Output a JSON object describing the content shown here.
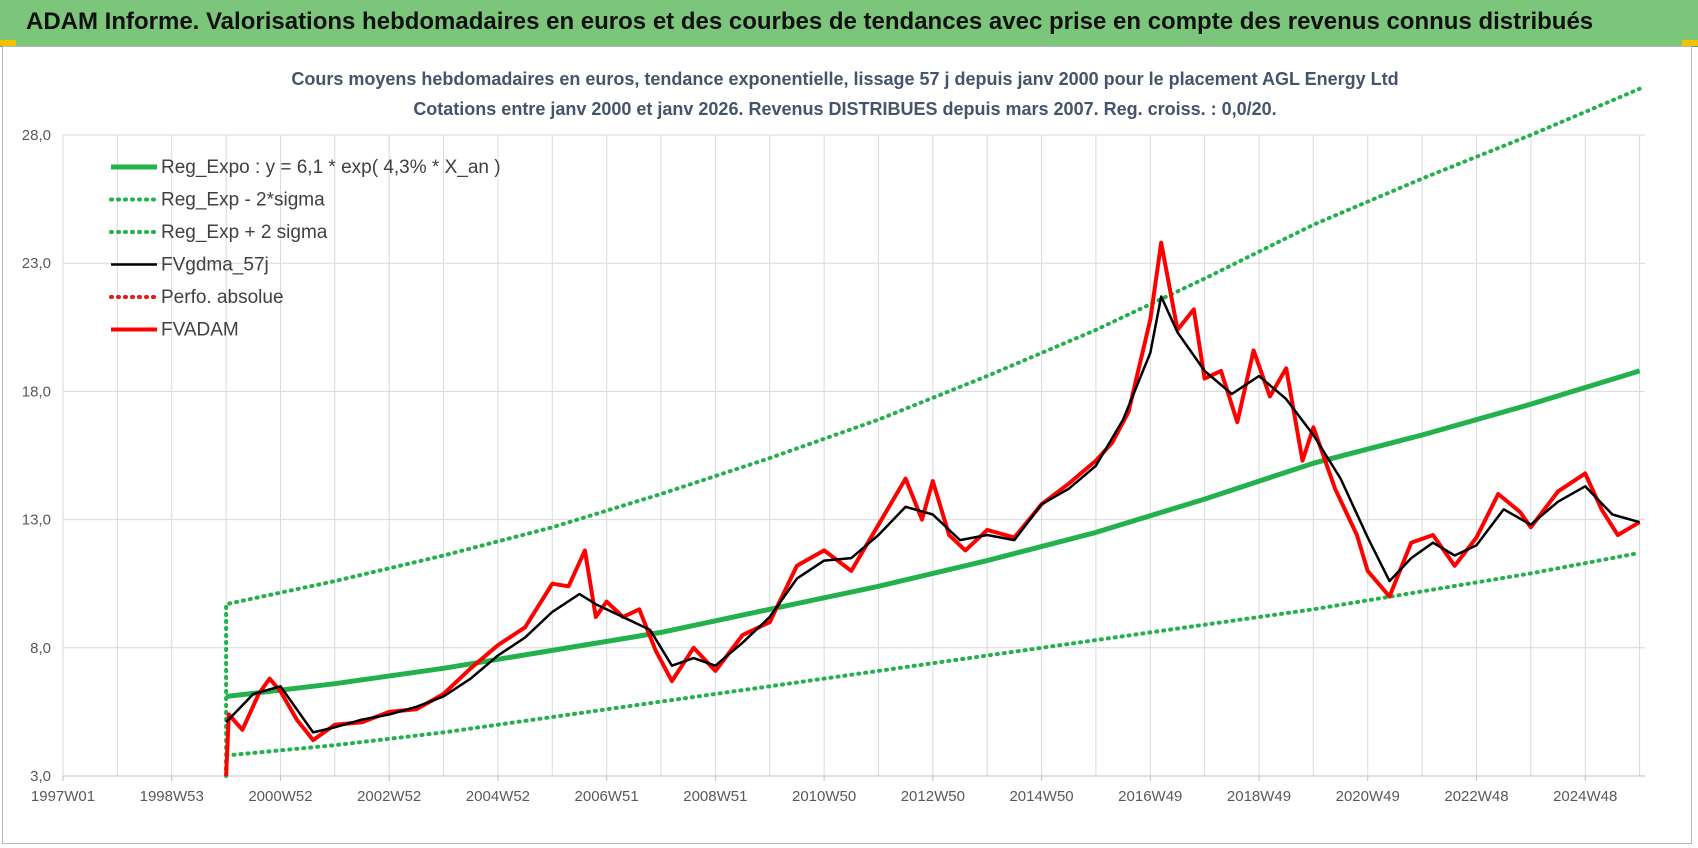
{
  "header": {
    "title": "ADAM Informe. Valorisations hebdomadaires en euros et des courbes de tendances avec prise en compte des revenus connus distribués"
  },
  "colors": {
    "banner": "#7cc67c",
    "trend": "#22b14c",
    "band": "#22b14c",
    "smooth": "#000000",
    "perfo": "#e41a1c",
    "fvadam": "#ff0000",
    "grid": "#d9d9d9"
  },
  "chart_data": {
    "type": "line",
    "title": "Cours moyens hebdomadaires en euros, tendance exponentielle, lissage 57 j depuis janv 2000  pour le placement AGL Energy Ltd",
    "subtitle": "Cotations entre janv 2000 et janv 2026. Revenus DISTRIBUES depuis mars 2007. Reg. croiss. : 0,0/20.",
    "xlabel": "",
    "ylabel": "",
    "xlim": [
      1997.0,
      2026.1
    ],
    "ylim": [
      3.0,
      28.0
    ],
    "yticks": [
      3.0,
      8.0,
      13.0,
      18.0,
      23.0,
      28.0
    ],
    "ytick_labels": [
      "3,0",
      "8,0",
      "13,0",
      "18,0",
      "23,0",
      "28,0"
    ],
    "xticks": [
      {
        "x": 1997.0,
        "label": "1997W01"
      },
      {
        "x": 1999.0,
        "label": "1998W53"
      },
      {
        "x": 2001.0,
        "label": "2000W52"
      },
      {
        "x": 2003.0,
        "label": "2002W52"
      },
      {
        "x": 2005.0,
        "label": "2004W52"
      },
      {
        "x": 2007.0,
        "label": "2006W51"
      },
      {
        "x": 2009.0,
        "label": "2008W51"
      },
      {
        "x": 2011.0,
        "label": "2010W50"
      },
      {
        "x": 2013.0,
        "label": "2012W50"
      },
      {
        "x": 2015.0,
        "label": "2014W50"
      },
      {
        "x": 2017.0,
        "label": "2016W49"
      },
      {
        "x": 2019.0,
        "label": "2018W49"
      },
      {
        "x": 2021.0,
        "label": "2020W49"
      },
      {
        "x": 2023.0,
        "label": "2022W48"
      },
      {
        "x": 2025.0,
        "label": "2024W48"
      }
    ],
    "grid": true,
    "legend_position": "top-left",
    "series": [
      {
        "name": "Reg_Expo : y = 6,1 * exp( 4,3% *  X_an )",
        "style": "solid-thick",
        "color": "#22b14c",
        "x": [
          2000.0,
          2002.0,
          2004.0,
          2006.0,
          2008.0,
          2010.0,
          2012.0,
          2014.0,
          2016.0,
          2018.0,
          2020.0,
          2022.0,
          2024.0,
          2026.0
        ],
        "y": [
          6.1,
          6.6,
          7.2,
          7.9,
          8.6,
          9.5,
          10.4,
          11.4,
          12.5,
          13.8,
          15.2,
          16.3,
          17.5,
          18.8
        ]
      },
      {
        "name": "Reg_Exp - 2*sigma",
        "style": "dotted",
        "color": "#22b14c",
        "x": [
          2000.0,
          2000.0,
          2002.0,
          2004.0,
          2006.0,
          2008.0,
          2010.0,
          2012.0,
          2014.0,
          2016.0,
          2018.0,
          2020.0,
          2022.0,
          2024.0,
          2026.0
        ],
        "y": [
          3.0,
          3.8,
          4.2,
          4.7,
          5.3,
          5.9,
          6.5,
          7.1,
          7.7,
          8.3,
          8.9,
          9.5,
          10.2,
          10.9,
          11.7
        ]
      },
      {
        "name": "Reg_Exp + 2 sigma",
        "style": "dotted",
        "color": "#22b14c",
        "x": [
          2000.0,
          2000.0,
          2002.0,
          2004.0,
          2006.0,
          2008.0,
          2010.0,
          2012.0,
          2014.0,
          2016.0,
          2018.0,
          2020.0,
          2022.0,
          2024.0,
          2026.0
        ],
        "y": [
          3.0,
          9.7,
          10.6,
          11.6,
          12.7,
          14.0,
          15.4,
          16.9,
          18.6,
          20.4,
          22.4,
          24.5,
          26.3,
          28.0,
          29.8
        ]
      },
      {
        "name": "FVgdma_57j",
        "style": "solid",
        "color": "#000000",
        "x": [
          2000.0,
          2000.5,
          2001.0,
          2001.3,
          2001.6,
          2002.0,
          2002.5,
          2003.0,
          2003.5,
          2004.0,
          2004.5,
          2005.0,
          2005.5,
          2006.0,
          2006.5,
          2006.8,
          2007.3,
          2007.8,
          2008.2,
          2008.6,
          2009.0,
          2009.5,
          2010.0,
          2010.5,
          2011.0,
          2011.5,
          2012.0,
          2012.5,
          2013.0,
          2013.5,
          2014.0,
          2014.5,
          2015.0,
          2015.5,
          2016.0,
          2016.5,
          2017.0,
          2017.2,
          2017.5,
          2018.0,
          2018.5,
          2019.0,
          2019.5,
          2020.0,
          2020.5,
          2021.0,
          2021.4,
          2021.8,
          2022.2,
          2022.6,
          2023.0,
          2023.5,
          2024.0,
          2024.5,
          2025.0,
          2025.5,
          2026.0
        ],
        "y": [
          5.1,
          6.2,
          6.5,
          5.6,
          4.7,
          4.9,
          5.2,
          5.4,
          5.7,
          6.1,
          6.8,
          7.7,
          8.4,
          9.4,
          10.1,
          9.7,
          9.2,
          8.7,
          7.3,
          7.6,
          7.3,
          8.2,
          9.2,
          10.7,
          11.4,
          11.5,
          12.4,
          13.5,
          13.2,
          12.2,
          12.4,
          12.2,
          13.6,
          14.2,
          15.1,
          16.9,
          19.5,
          21.7,
          20.3,
          18.8,
          17.9,
          18.6,
          17.7,
          16.3,
          14.6,
          12.3,
          10.6,
          11.5,
          12.1,
          11.6,
          12.0,
          13.4,
          12.8,
          13.7,
          14.3,
          13.2,
          12.9
        ]
      },
      {
        "name": "Perfo. absolue",
        "style": "dotted",
        "color": "#e41a1c",
        "x": [],
        "y": []
      },
      {
        "name": "FVADAM",
        "style": "solid-thick",
        "color": "#ff0000",
        "x": [
          2000.0,
          2000.05,
          2000.3,
          2000.6,
          2000.8,
          2001.0,
          2001.3,
          2001.6,
          2002.0,
          2002.5,
          2003.0,
          2003.5,
          2004.0,
          2004.5,
          2005.0,
          2005.5,
          2006.0,
          2006.3,
          2006.6,
          2006.8,
          2007.0,
          2007.3,
          2007.6,
          2007.9,
          2008.2,
          2008.6,
          2009.0,
          2009.5,
          2010.0,
          2010.5,
          2011.0,
          2011.5,
          2012.0,
          2012.5,
          2012.8,
          2013.0,
          2013.3,
          2013.6,
          2014.0,
          2014.5,
          2015.0,
          2015.5,
          2016.0,
          2016.3,
          2016.6,
          2017.0,
          2017.2,
          2017.5,
          2017.8,
          2018.0,
          2018.3,
          2018.6,
          2018.9,
          2019.2,
          2019.5,
          2019.8,
          2020.0,
          2020.4,
          2020.8,
          2021.0,
          2021.4,
          2021.8,
          2022.2,
          2022.6,
          2023.0,
          2023.4,
          2023.8,
          2024.0,
          2024.5,
          2025.0,
          2025.3,
          2025.6,
          2026.0
        ],
        "y": [
          3.0,
          5.4,
          4.8,
          6.2,
          6.8,
          6.3,
          5.2,
          4.4,
          5.0,
          5.1,
          5.5,
          5.6,
          6.2,
          7.2,
          8.1,
          8.8,
          10.5,
          10.4,
          11.8,
          9.2,
          9.8,
          9.2,
          9.5,
          7.9,
          6.7,
          8.0,
          7.1,
          8.5,
          9.0,
          11.2,
          11.8,
          11.0,
          12.8,
          14.6,
          13.0,
          14.5,
          12.4,
          11.8,
          12.6,
          12.3,
          13.6,
          14.4,
          15.3,
          16.0,
          17.2,
          20.8,
          23.8,
          20.4,
          21.2,
          18.5,
          18.8,
          16.8,
          19.6,
          17.8,
          18.9,
          15.3,
          16.6,
          14.2,
          12.4,
          11.0,
          10.0,
          12.1,
          12.4,
          11.2,
          12.3,
          14.0,
          13.3,
          12.7,
          14.1,
          14.8,
          13.4,
          12.4,
          12.9
        ]
      }
    ]
  }
}
